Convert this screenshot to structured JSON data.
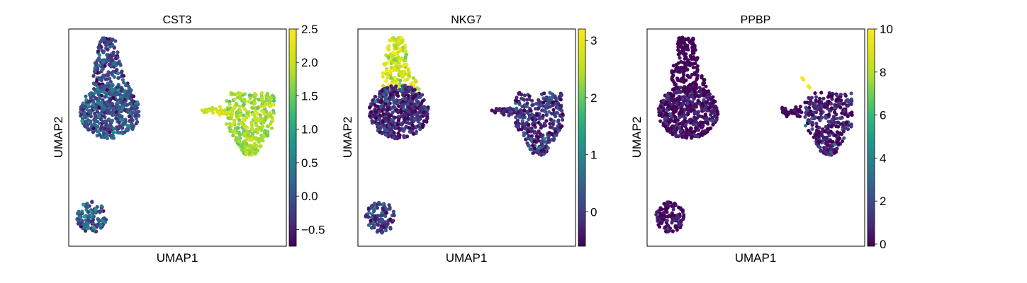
{
  "chart_data": [
    {
      "type": "scatter",
      "title": "CST3",
      "xlabel": "UMAP1",
      "ylabel": "UMAP2",
      "grid": false,
      "legend": "colorbar-right",
      "colormap": "viridis",
      "color_range": [
        -0.75,
        2.5
      ],
      "colorbar_ticks": [
        "2.5",
        "2.0",
        "1.5",
        "1.0",
        "0.5",
        "0.0",
        "−0.5"
      ],
      "colorbar_tick_values": [
        2.5,
        2.0,
        1.5,
        1.0,
        0.5,
        0.0,
        -0.5
      ],
      "clusters": [
        {
          "label": "left_upper_stalk",
          "expression": [
            -0.75,
            0.6
          ],
          "mean": -0.1
        },
        {
          "label": "left_upper_body",
          "expression": [
            -0.75,
            0.9
          ],
          "mean": 0.0
        },
        {
          "label": "left_lower_blob",
          "expression": [
            -0.75,
            0.9
          ],
          "mean": 0.1
        },
        {
          "label": "right_arm",
          "expression": [
            1.6,
            2.5
          ],
          "mean": 2.1
        },
        {
          "label": "right_body",
          "expression": [
            1.3,
            2.3
          ],
          "mean": 1.8
        }
      ]
    },
    {
      "type": "scatter",
      "title": "NKG7",
      "xlabel": "UMAP1",
      "ylabel": "UMAP2",
      "grid": false,
      "legend": "colorbar-right",
      "colormap": "viridis",
      "color_range": [
        -0.6,
        3.2
      ],
      "colorbar_ticks": [
        "3",
        "2",
        "1",
        "0"
      ],
      "colorbar_tick_values": [
        3,
        2,
        1,
        0
      ],
      "clusters": [
        {
          "label": "left_upper_stalk",
          "expression": [
            1.5,
            3.2
          ],
          "mean": 2.7
        },
        {
          "label": "left_upper_body",
          "expression": [
            -0.6,
            1.2
          ],
          "mean": -0.2
        },
        {
          "label": "left_lower_blob",
          "expression": [
            -0.6,
            1.0
          ],
          "mean": 0.0
        },
        {
          "label": "right_arm",
          "expression": [
            -0.6,
            0.8
          ],
          "mean": -0.3
        },
        {
          "label": "right_body",
          "expression": [
            -0.6,
            1.2
          ],
          "mean": -0.1
        }
      ]
    },
    {
      "type": "scatter",
      "title": "PPBP",
      "xlabel": "UMAP1",
      "ylabel": "UMAP2",
      "grid": false,
      "legend": "colorbar-right",
      "colormap": "viridis",
      "color_range": [
        -0.1,
        10
      ],
      "colorbar_ticks": [
        "10",
        "8",
        "6",
        "4",
        "2",
        "0"
      ],
      "colorbar_tick_values": [
        10,
        8,
        6,
        4,
        2,
        0
      ],
      "clusters": [
        {
          "label": "left_upper_stalk",
          "expression": [
            -0.1,
            0.5
          ],
          "mean": 0.0
        },
        {
          "label": "left_upper_body",
          "expression": [
            -0.1,
            3.5
          ],
          "mean": 0.3
        },
        {
          "label": "left_lower_blob",
          "expression": [
            -0.1,
            3.0
          ],
          "mean": 0.2
        },
        {
          "label": "right_arm",
          "expression": [
            -0.1,
            2.0
          ],
          "mean": 0.1
        },
        {
          "label": "right_body",
          "expression": [
            -0.1,
            4.5
          ],
          "mean": 0.5
        },
        {
          "label": "platelet_tail",
          "expression": [
            9.0,
            10
          ],
          "mean": 9.8
        }
      ]
    }
  ]
}
